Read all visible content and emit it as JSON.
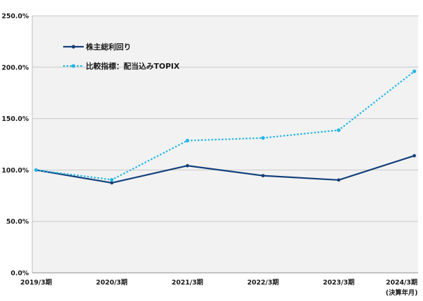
{
  "chart_data": {
    "type": "line",
    "categories": [
      "2019/3期",
      "2020/3期",
      "2021/3期",
      "2022/3期",
      "2023/3期",
      "2024/3期"
    ],
    "x_unit_note": "(決算年月)",
    "series": [
      {
        "name": "株主総利回り",
        "color": "#123f7a",
        "style": "solid",
        "values": [
          100.0,
          87.5,
          104.2,
          94.5,
          90.3,
          113.9
        ]
      },
      {
        "name": "比較指標：配当込みTOPIX",
        "color": "#1fb5ea",
        "style": "dotted",
        "values": [
          100.0,
          90.5,
          128.6,
          131.2,
          138.8,
          196.0
        ]
      }
    ],
    "y_ticks": [
      "0.0%",
      "50.0%",
      "100.0%",
      "150.0%",
      "200.0%",
      "250.0%"
    ],
    "ylim": [
      0,
      250
    ],
    "grid": true,
    "legend_position": "top-left",
    "plot_background": "#f2f2f2"
  }
}
